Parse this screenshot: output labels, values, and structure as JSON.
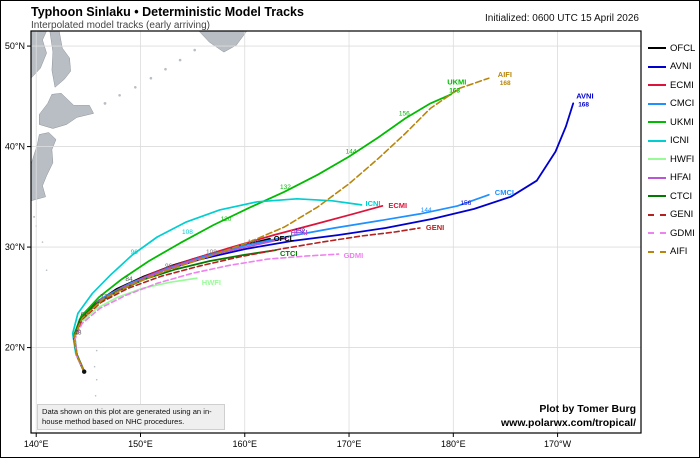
{
  "header": {
    "title": "Typhoon Sinlaku • Deterministic Model Tracks",
    "subtitle": "Interpolated model tracks (early arriving)",
    "initialized": "Initialized: 0600 UTC 15 April 2026"
  },
  "footer": {
    "disclaimer": "Data shown on this plot are generated using an in-house method based on NHC procedures.",
    "credit": "Plot by Tomer Burg",
    "url": "www.polarwx.com/tropical/"
  },
  "chart_data": {
    "type": "line",
    "title": "Typhoon Sinlaku • Deterministic Model Tracks",
    "subtitle": "Interpolated model tracks (early arriving)",
    "initialized": "Initialized: 0600 UTC 15 April 2026",
    "projection": {
      "lon_min": 139.5,
      "lon_max": 198.0,
      "lat_min": 11.5,
      "lat_max": 51.5
    },
    "x_ticks": [
      {
        "lon": 140,
        "label": "140°E"
      },
      {
        "lon": 150,
        "label": "150°E"
      },
      {
        "lon": 160,
        "label": "160°E"
      },
      {
        "lon": 170,
        "label": "170°E"
      },
      {
        "lon": 180,
        "label": "180°E"
      },
      {
        "lon": 190,
        "label": "170°W"
      }
    ],
    "y_ticks": [
      {
        "lat": 20,
        "label": "20°N"
      },
      {
        "lat": 30,
        "label": "30°N"
      },
      {
        "lat": 40,
        "label": "40°N"
      },
      {
        "lat": 50,
        "label": "50°N"
      }
    ],
    "start": {
      "lon": 144.6,
      "lat": 17.6
    },
    "series": [
      {
        "name": "OFCL",
        "color": "#000000",
        "dash": null,
        "width": 2.2,
        "label_dx": 4,
        "label_dy": 2,
        "end_hour": null,
        "points": [
          [
            144.6,
            17.6
          ],
          [
            143.9,
            19.2
          ],
          [
            143.6,
            21.0
          ],
          [
            144.2,
            22.8
          ],
          [
            145.7,
            24.4
          ],
          [
            147.7,
            25.8
          ],
          [
            150.2,
            27.0
          ],
          [
            153.2,
            28.2
          ],
          [
            156.4,
            29.2
          ],
          [
            159.6,
            30.1
          ],
          [
            162.4,
            30.8
          ]
        ]
      },
      {
        "name": "AVNI",
        "color": "#0000CD",
        "dash": null,
        "width": 1.8,
        "label_dx": 3,
        "label_dy": -5,
        "end_hour": "168",
        "points": [
          [
            144.6,
            17.6
          ],
          [
            143.9,
            19.3
          ],
          [
            143.6,
            21.2
          ],
          [
            144.4,
            23.0
          ],
          [
            146.2,
            24.8
          ],
          [
            148.8,
            26.2
          ],
          [
            152.0,
            27.6
          ],
          [
            155.8,
            28.8
          ],
          [
            160.0,
            29.8
          ],
          [
            164.5,
            30.6
          ],
          [
            169.0,
            31.2
          ],
          [
            173.5,
            31.9
          ],
          [
            178.0,
            32.8
          ],
          [
            182.0,
            33.8
          ],
          [
            185.5,
            35.0
          ],
          [
            188.0,
            36.6
          ],
          [
            189.8,
            39.5
          ],
          [
            190.8,
            42.0
          ],
          [
            191.5,
            44.3
          ]
        ]
      },
      {
        "name": "ECMI",
        "color": "#DC143C",
        "dash": null,
        "width": 1.7,
        "label_dx": 6,
        "label_dy": 2,
        "end_hour": null,
        "points": [
          [
            144.6,
            17.6
          ],
          [
            143.9,
            19.2
          ],
          [
            143.6,
            21.0
          ],
          [
            144.2,
            22.8
          ],
          [
            146.0,
            24.7
          ],
          [
            148.4,
            26.1
          ],
          [
            151.4,
            27.5
          ],
          [
            155.0,
            28.8
          ],
          [
            158.8,
            30.0
          ],
          [
            162.8,
            31.2
          ],
          [
            166.8,
            32.3
          ],
          [
            170.4,
            33.3
          ],
          [
            173.2,
            34.1
          ]
        ]
      },
      {
        "name": "CMCI",
        "color": "#1E90FF",
        "dash": null,
        "width": 1.7,
        "label_dx": 6,
        "label_dy": 0,
        "end_hour": null,
        "points": [
          [
            144.6,
            17.6
          ],
          [
            143.9,
            19.3
          ],
          [
            143.7,
            21.1
          ],
          [
            144.4,
            23.0
          ],
          [
            146.3,
            24.9
          ],
          [
            149.0,
            26.4
          ],
          [
            152.4,
            27.8
          ],
          [
            156.2,
            29.1
          ],
          [
            160.2,
            30.2
          ],
          [
            164.4,
            31.1
          ],
          [
            168.6,
            31.9
          ],
          [
            172.8,
            32.6
          ],
          [
            176.8,
            33.3
          ],
          [
            180.4,
            34.1
          ],
          [
            183.4,
            35.2
          ]
        ]
      },
      {
        "name": "UKMI",
        "color": "#00BB00",
        "dash": null,
        "width": 1.8,
        "label_dx": -4,
        "label_dy": -10,
        "end_hour": "168",
        "points": [
          [
            144.6,
            17.6
          ],
          [
            143.9,
            19.3
          ],
          [
            143.6,
            21.2
          ],
          [
            144.3,
            23.1
          ],
          [
            146.0,
            25.0
          ],
          [
            148.2,
            26.8
          ],
          [
            150.8,
            28.6
          ],
          [
            153.8,
            30.4
          ],
          [
            157.0,
            32.2
          ],
          [
            160.4,
            33.9
          ],
          [
            163.8,
            35.5
          ],
          [
            167.0,
            37.2
          ],
          [
            170.0,
            39.0
          ],
          [
            172.8,
            40.9
          ],
          [
            175.4,
            42.8
          ],
          [
            177.8,
            44.3
          ],
          [
            179.8,
            45.2
          ]
        ]
      },
      {
        "name": "ICNI",
        "color": "#00CED1",
        "dash": null,
        "width": 1.7,
        "label_dx": 4,
        "label_dy": 1,
        "end_hour": null,
        "points": [
          [
            144.6,
            17.6
          ],
          [
            143.8,
            19.4
          ],
          [
            143.5,
            21.4
          ],
          [
            144.0,
            23.4
          ],
          [
            145.4,
            25.4
          ],
          [
            147.2,
            27.3
          ],
          [
            149.2,
            29.2
          ],
          [
            151.6,
            31.0
          ],
          [
            154.4,
            32.5
          ],
          [
            157.6,
            33.7
          ],
          [
            161.2,
            34.5
          ],
          [
            165.0,
            34.8
          ],
          [
            168.4,
            34.6
          ],
          [
            171.2,
            34.2
          ]
        ]
      },
      {
        "name": "HWFI",
        "color": "#98FB98",
        "dash": null,
        "width": 1.7,
        "label_dx": 5,
        "label_dy": 7,
        "end_hour": null,
        "points": [
          [
            144.6,
            17.6
          ],
          [
            143.9,
            19.2
          ],
          [
            143.7,
            20.9
          ],
          [
            144.3,
            22.5
          ],
          [
            145.8,
            23.9
          ],
          [
            147.8,
            25.0
          ],
          [
            150.2,
            25.9
          ],
          [
            152.8,
            26.5
          ],
          [
            155.4,
            26.9
          ]
        ]
      },
      {
        "name": "HFAI",
        "color": "#BA55D3",
        "dash": null,
        "width": 1.7,
        "label_dx": 4,
        "label_dy": -3,
        "end_hour": null,
        "points": [
          [
            144.6,
            17.6
          ],
          [
            143.9,
            19.2
          ],
          [
            143.6,
            21.0
          ],
          [
            144.2,
            22.8
          ],
          [
            145.9,
            24.5
          ],
          [
            148.2,
            25.9
          ],
          [
            151.0,
            27.2
          ],
          [
            154.2,
            28.4
          ],
          [
            157.6,
            29.4
          ],
          [
            161.0,
            30.2
          ],
          [
            164.0,
            30.9
          ]
        ]
      },
      {
        "name": "CTCI",
        "color": "#007A00",
        "dash": null,
        "width": 1.8,
        "label_dx": 4,
        "label_dy": 6,
        "end_hour": null,
        "points": [
          [
            144.6,
            17.6
          ],
          [
            143.9,
            19.2
          ],
          [
            143.6,
            21.0
          ],
          [
            144.2,
            22.8
          ],
          [
            145.7,
            24.3
          ],
          [
            147.8,
            25.6
          ],
          [
            150.4,
            26.8
          ],
          [
            153.4,
            27.8
          ],
          [
            156.6,
            28.6
          ],
          [
            159.8,
            29.2
          ],
          [
            163.0,
            29.7
          ]
        ]
      },
      {
        "name": "GENI",
        "color": "#B22222",
        "dash": "5,3",
        "width": 1.6,
        "label_dx": 6,
        "label_dy": 2,
        "end_hour": null,
        "points": [
          [
            144.6,
            17.6
          ],
          [
            143.9,
            19.2
          ],
          [
            143.7,
            21.0
          ],
          [
            144.4,
            22.8
          ],
          [
            146.2,
            24.5
          ],
          [
            148.8,
            25.9
          ],
          [
            152.0,
            27.1
          ],
          [
            155.6,
            28.1
          ],
          [
            159.4,
            29.0
          ],
          [
            163.4,
            29.8
          ],
          [
            167.4,
            30.5
          ],
          [
            171.2,
            31.1
          ],
          [
            174.4,
            31.5
          ],
          [
            176.8,
            31.9
          ]
        ]
      },
      {
        "name": "GDMI",
        "color": "#EE82EE",
        "dash": "5,3",
        "width": 1.6,
        "label_dx": 5,
        "label_dy": 4,
        "end_hour": null,
        "points": [
          [
            144.6,
            17.6
          ],
          [
            143.9,
            19.1
          ],
          [
            143.7,
            20.8
          ],
          [
            144.4,
            22.4
          ],
          [
            146.1,
            23.9
          ],
          [
            148.6,
            25.2
          ],
          [
            151.6,
            26.4
          ],
          [
            155.0,
            27.4
          ],
          [
            158.6,
            28.2
          ],
          [
            162.2,
            28.8
          ],
          [
            165.8,
            29.1
          ],
          [
            169.0,
            29.3
          ]
        ]
      },
      {
        "name": "AIFI",
        "color": "#B8860B",
        "dash": "6,3",
        "width": 1.6,
        "label_dx": 9,
        "label_dy": -1,
        "end_hour": "168",
        "points": [
          [
            144.6,
            17.6
          ],
          [
            143.9,
            19.2
          ],
          [
            143.6,
            21.0
          ],
          [
            144.4,
            22.9
          ],
          [
            146.4,
            24.8
          ],
          [
            149.2,
            26.3
          ],
          [
            152.6,
            27.7
          ],
          [
            156.4,
            29.0
          ],
          [
            160.2,
            30.4
          ],
          [
            163.8,
            32.0
          ],
          [
            167.0,
            34.0
          ],
          [
            170.0,
            36.3
          ],
          [
            172.8,
            38.8
          ],
          [
            175.4,
            41.3
          ],
          [
            177.8,
            43.8
          ],
          [
            180.6,
            45.8
          ],
          [
            183.4,
            46.8
          ]
        ]
      }
    ],
    "hour_markers": [
      {
        "text": "48",
        "lon": 144.0,
        "lat": 21.3,
        "color": "#555555"
      },
      {
        "text": "60",
        "lon": 144.6,
        "lat": 23.1,
        "color": "#555555"
      },
      {
        "text": "72",
        "lon": 146.5,
        "lat": 24.9,
        "color": "#555555"
      },
      {
        "text": "84",
        "lon": 148.9,
        "lat": 26.6,
        "color": "#555555"
      },
      {
        "text": "96",
        "lon": 149.4,
        "lat": 29.3,
        "color": "#00CED1"
      },
      {
        "text": "96",
        "lon": 152.7,
        "lat": 27.9,
        "color": "#777777"
      },
      {
        "text": "108",
        "lon": 154.5,
        "lat": 31.3,
        "color": "#00CED1"
      },
      {
        "text": "108",
        "lon": 156.8,
        "lat": 29.3,
        "color": "#777777"
      },
      {
        "text": "120",
        "lon": 158.2,
        "lat": 32.6,
        "color": "#00BB00"
      },
      {
        "text": "120",
        "lon": 160.8,
        "lat": 30.3,
        "color": "#777777"
      },
      {
        "text": "132",
        "lon": 163.9,
        "lat": 35.8,
        "color": "#00BB00"
      },
      {
        "text": "132",
        "lon": 165.3,
        "lat": 31.4,
        "color": "#0000CD"
      },
      {
        "text": "144",
        "lon": 170.2,
        "lat": 39.3,
        "color": "#00BB00"
      },
      {
        "text": "144",
        "lon": 177.4,
        "lat": 33.5,
        "color": "#1E90FF"
      },
      {
        "text": "156",
        "lon": 175.3,
        "lat": 43.1,
        "color": "#00BB00"
      },
      {
        "text": "156",
        "lon": 181.2,
        "lat": 34.2,
        "color": "#0000CD"
      }
    ]
  }
}
